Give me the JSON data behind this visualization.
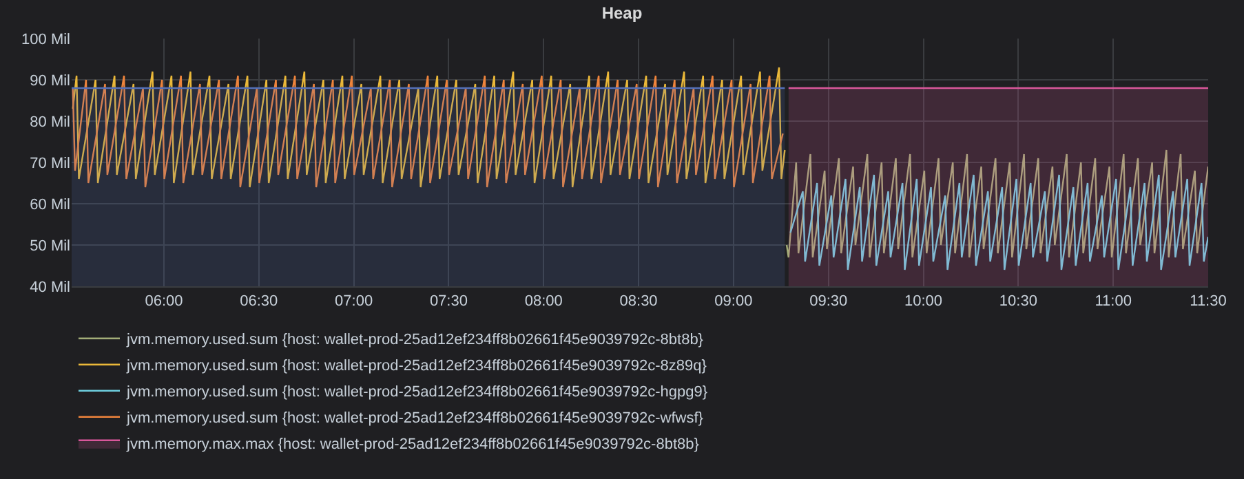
{
  "chart_data": {
    "type": "line",
    "title": "Heap",
    "xlim": [
      5.514,
      11.5
    ],
    "xticks": [
      {
        "value": 6,
        "label": "06:00"
      },
      {
        "value": 6.5,
        "label": "06:30"
      },
      {
        "value": 7,
        "label": "07:00"
      },
      {
        "value": 7.5,
        "label": "07:30"
      },
      {
        "value": 8,
        "label": "08:00"
      },
      {
        "value": 8.5,
        "label": "08:30"
      },
      {
        "value": 9,
        "label": "09:00"
      },
      {
        "value": 9.5,
        "label": "09:30"
      },
      {
        "value": 10,
        "label": "10:00"
      },
      {
        "value": 10.5,
        "label": "10:30"
      },
      {
        "value": 11,
        "label": "11:00"
      },
      {
        "value": 11.5,
        "label": "11:30"
      }
    ],
    "ylim": [
      40,
      100
    ],
    "yticks": [
      {
        "value": 40,
        "label": "40 Mil"
      },
      {
        "value": 50,
        "label": "50 Mil"
      },
      {
        "value": 60,
        "label": "60 Mil"
      },
      {
        "value": 70,
        "label": "70 Mil"
      },
      {
        "value": 80,
        "label": "80 Mil"
      },
      {
        "value": 90,
        "label": "90 Mil"
      },
      {
        "value": 100,
        "label": "100 Mil"
      }
    ],
    "grid": true,
    "legend": "bottom",
    "series": [
      {
        "name": "jvm.memory.used.sum {host: wallet-prod-25ad12ef234ff8b02661f45e9039792c-8bt8b}",
        "color": "#a3ad78",
        "x": [
          9.28,
          9.29,
          9.33,
          9.342,
          9.405,
          9.417,
          9.48,
          9.492,
          9.555,
          9.567,
          9.63,
          9.642,
          9.705,
          9.717,
          9.78,
          9.792,
          9.855,
          9.867,
          9.93,
          9.942,
          10.005,
          10.017,
          10.08,
          10.092,
          10.155,
          10.167,
          10.23,
          10.242,
          10.305,
          10.317,
          10.38,
          10.392,
          10.455,
          10.467,
          10.53,
          10.542,
          10.605,
          10.617,
          10.68,
          10.692,
          10.755,
          10.767,
          10.83,
          10.842,
          10.905,
          10.917,
          10.98,
          10.992,
          11.055,
          11.067,
          11.13,
          11.142,
          11.205,
          11.217,
          11.28,
          11.292,
          11.355,
          11.367,
          11.43,
          11.442,
          11.5
        ],
        "values": [
          50,
          47,
          70,
          48,
          72,
          47,
          68,
          49,
          71,
          48,
          69,
          50,
          72,
          47,
          70,
          48,
          71,
          49,
          72,
          47,
          68,
          48,
          71,
          50,
          70,
          48,
          72,
          47,
          69,
          49,
          71,
          48,
          70,
          47,
          72,
          49,
          71,
          48,
          69,
          50,
          72,
          47,
          70,
          48,
          71,
          49,
          69,
          47,
          72,
          48,
          71,
          50,
          70,
          48,
          73,
          47,
          72,
          49,
          68,
          48,
          69
        ]
      },
      {
        "name": "jvm.memory.used.sum {host: wallet-prod-25ad12ef234ff8b02661f45e9039792c-8z89q}",
        "color": "#eab839",
        "x": [
          5.52,
          5.54,
          5.552,
          5.64,
          5.652,
          5.74,
          5.752,
          5.84,
          5.852,
          5.94,
          5.952,
          6.04,
          6.052,
          6.14,
          6.152,
          6.24,
          6.252,
          6.34,
          6.352,
          6.44,
          6.452,
          6.54,
          6.552,
          6.64,
          6.652,
          6.74,
          6.752,
          6.84,
          6.852,
          6.94,
          6.952,
          7.04,
          7.052,
          7.14,
          7.152,
          7.24,
          7.252,
          7.34,
          7.352,
          7.44,
          7.452,
          7.54,
          7.552,
          7.64,
          7.652,
          7.74,
          7.752,
          7.84,
          7.852,
          7.94,
          7.952,
          8.04,
          8.052,
          8.14,
          8.152,
          8.24,
          8.252,
          8.34,
          8.352,
          8.44,
          8.452,
          8.54,
          8.552,
          8.64,
          8.652,
          8.74,
          8.752,
          8.84,
          8.852,
          8.94,
          8.952,
          9.04,
          9.052,
          9.14,
          9.152,
          9.24,
          9.252,
          9.27
        ],
        "values": [
          83,
          91,
          66,
          90,
          65,
          91,
          67,
          89,
          66,
          92,
          67,
          91,
          65,
          92,
          67,
          91,
          66,
          89,
          66,
          91,
          64,
          90,
          65,
          91,
          66,
          92,
          67,
          90,
          65,
          91,
          66,
          89,
          67,
          91,
          65,
          90,
          66,
          88,
          64,
          91,
          66,
          90,
          67,
          89,
          65,
          91,
          66,
          92,
          67,
          90,
          65,
          91,
          66,
          89,
          64,
          91,
          66,
          92,
          67,
          90,
          66,
          91,
          65,
          89,
          67,
          92,
          66,
          91,
          65,
          90,
          66,
          91,
          67,
          92,
          68,
          93,
          66,
          73
        ]
      },
      {
        "name": "jvm.memory.used.sum {host: wallet-prod-25ad12ef234ff8b02661f45e9039792c-hgpg9}",
        "color": "#6ed0e0",
        "x": [
          9.3,
          9.365,
          9.377,
          9.44,
          9.452,
          9.515,
          9.527,
          9.59,
          9.602,
          9.665,
          9.677,
          9.74,
          9.752,
          9.815,
          9.827,
          9.89,
          9.902,
          9.965,
          9.977,
          10.04,
          10.052,
          10.115,
          10.127,
          10.19,
          10.202,
          10.265,
          10.277,
          10.34,
          10.352,
          10.415,
          10.427,
          10.49,
          10.502,
          10.565,
          10.577,
          10.64,
          10.652,
          10.715,
          10.727,
          10.79,
          10.802,
          10.865,
          10.877,
          10.94,
          10.952,
          11.015,
          11.027,
          11.09,
          11.102,
          11.165,
          11.177,
          11.24,
          11.252,
          11.315,
          11.327,
          11.39,
          11.402,
          11.465,
          11.477,
          11.5
        ],
        "values": [
          53,
          63,
          46,
          65,
          45,
          62,
          47,
          66,
          44,
          64,
          46,
          67,
          45,
          63,
          47,
          65,
          44,
          66,
          45,
          64,
          46,
          62,
          44,
          65,
          47,
          67,
          45,
          63,
          46,
          64,
          44,
          66,
          45,
          65,
          47,
          63,
          46,
          67,
          44,
          64,
          45,
          65,
          46,
          62,
          47,
          66,
          44,
          64,
          45,
          65,
          46,
          67,
          44,
          63,
          47,
          66,
          45,
          65,
          46,
          52
        ]
      },
      {
        "name": "jvm.memory.used.sum {host: wallet-prod-25ad12ef234ff8b02661f45e9039792c-wfwsf}",
        "color": "#ef843c",
        "x": [
          5.52,
          5.532,
          5.59,
          5.602,
          5.69,
          5.702,
          5.79,
          5.802,
          5.89,
          5.902,
          5.99,
          6.002,
          6.09,
          6.102,
          6.19,
          6.202,
          6.29,
          6.302,
          6.39,
          6.402,
          6.49,
          6.502,
          6.59,
          6.602,
          6.69,
          6.702,
          6.79,
          6.802,
          6.89,
          6.902,
          6.99,
          7.002,
          7.09,
          7.102,
          7.19,
          7.202,
          7.29,
          7.302,
          7.39,
          7.402,
          7.49,
          7.502,
          7.59,
          7.602,
          7.69,
          7.702,
          7.79,
          7.802,
          7.89,
          7.902,
          7.99,
          8.002,
          8.09,
          8.102,
          8.19,
          8.202,
          8.29,
          8.302,
          8.39,
          8.402,
          8.49,
          8.502,
          8.59,
          8.602,
          8.69,
          8.702,
          8.79,
          8.802,
          8.89,
          8.902,
          8.99,
          9.002,
          9.09,
          9.102,
          9.19,
          9.202,
          9.26
        ],
        "values": [
          88,
          68,
          90,
          65,
          89,
          67,
          91,
          66,
          88,
          64,
          90,
          66,
          91,
          65,
          89,
          67,
          90,
          66,
          91,
          64,
          88,
          65,
          90,
          67,
          91,
          66,
          89,
          64,
          90,
          65,
          91,
          67,
          88,
          66,
          90,
          64,
          89,
          66,
          91,
          65,
          90,
          67,
          88,
          66,
          91,
          64,
          90,
          65,
          89,
          67,
          91,
          66,
          90,
          64,
          88,
          66,
          91,
          65,
          90,
          67,
          89,
          66,
          91,
          64,
          90,
          65,
          88,
          67,
          91,
          66,
          90,
          64,
          89,
          65,
          91,
          66,
          77
        ]
      },
      {
        "name": "jvm.memory.max.max {host: wallet-prod-25ad12ef234ff8b02661f45e9039792c-8bt8b}",
        "color": "#d9579b",
        "type": "area",
        "x": [
          9.29,
          11.5
        ],
        "values": [
          88,
          88
        ]
      },
      {
        "color": "#5470b8",
        "type": "area",
        "x": [
          5.514,
          9.27
        ],
        "values": [
          88,
          88
        ]
      }
    ]
  }
}
